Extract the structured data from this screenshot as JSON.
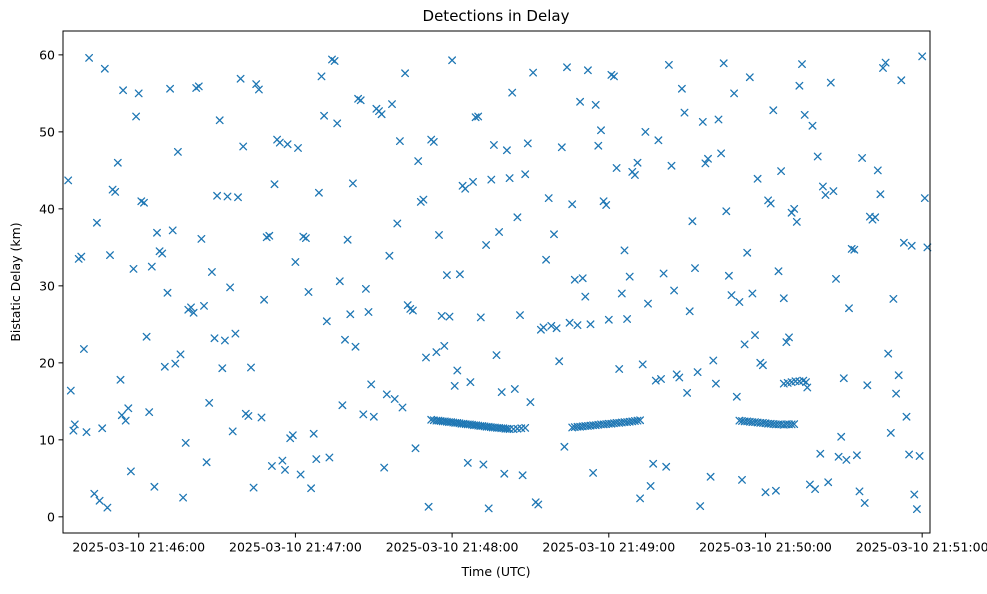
{
  "figure": {
    "title": "Detections in Delay",
    "background_color": "#ffffff",
    "axes_color": "#000000",
    "marker_color": "#1f77b4"
  },
  "chart_data": {
    "type": "scatter",
    "title": "Detections in Delay",
    "xlabel": "Time (UTC)",
    "ylabel": "Bistatic Delay (km)",
    "marker": "x",
    "marker_color": "#1f77b4",
    "grid": false,
    "legend": "none",
    "x_unit": "seconds after 2025-03-10 21:46:00 UTC",
    "x_range": [
      -29,
      303
    ],
    "y_range": [
      -2.1,
      63.1
    ],
    "y_ticks": [
      0,
      10,
      20,
      30,
      40,
      50,
      60
    ],
    "x_ticks": [
      {
        "t": 0,
        "label": "2025-03-10 21:46:00"
      },
      {
        "t": 60,
        "label": "2025-03-10 21:47:00"
      },
      {
        "t": 120,
        "label": "2025-03-10 21:48:00"
      },
      {
        "t": 180,
        "label": "2025-03-10 21:49:00"
      },
      {
        "t": 240,
        "label": "2025-03-10 21:50:00"
      },
      {
        "t": 300,
        "label": "2025-03-10 21:51:00"
      }
    ],
    "points": [
      [
        -27,
        43.7
      ],
      [
        -26,
        16.4
      ],
      [
        -25,
        11.2
      ],
      [
        -24.5,
        12.0
      ],
      [
        -23,
        33.5
      ],
      [
        -22,
        33.8
      ],
      [
        -21,
        21.8
      ],
      [
        -20,
        11.0
      ],
      [
        -19,
        59.6
      ],
      [
        -17,
        3.0
      ],
      [
        -16,
        38.2
      ],
      [
        -15,
        2.1
      ],
      [
        -14,
        11.5
      ],
      [
        -13,
        58.2
      ],
      [
        -12,
        1.2
      ],
      [
        -11,
        34.0
      ],
      [
        -10,
        42.5
      ],
      [
        -9,
        42.2
      ],
      [
        -8,
        46.0
      ],
      [
        -7,
        17.8
      ],
      [
        -6.5,
        13.2
      ],
      [
        -6,
        55.4
      ],
      [
        -5,
        12.5
      ],
      [
        -4,
        14.1
      ],
      [
        -3,
        5.9
      ],
      [
        -2,
        32.2
      ],
      [
        -1,
        52.0
      ],
      [
        0,
        55.0
      ],
      [
        1,
        41.0
      ],
      [
        2,
        40.8
      ],
      [
        3,
        23.4
      ],
      [
        4,
        13.6
      ],
      [
        5,
        32.5
      ],
      [
        6,
        3.9
      ],
      [
        7,
        36.9
      ],
      [
        8,
        34.5
      ],
      [
        9,
        34.2
      ],
      [
        10,
        19.5
      ],
      [
        11,
        29.1
      ],
      [
        12,
        55.6
      ],
      [
        13,
        37.2
      ],
      [
        14,
        19.9
      ],
      [
        15,
        47.4
      ],
      [
        16,
        21.1
      ],
      [
        17,
        2.5
      ],
      [
        18,
        9.6
      ],
      [
        19,
        26.9
      ],
      [
        20,
        27.2
      ],
      [
        21,
        26.5
      ],
      [
        22,
        55.7
      ],
      [
        23,
        55.9
      ],
      [
        24,
        36.1
      ],
      [
        25,
        27.4
      ],
      [
        26,
        7.1
      ],
      [
        27,
        14.8
      ],
      [
        28,
        31.8
      ],
      [
        29,
        23.2
      ],
      [
        30,
        41.7
      ],
      [
        31,
        51.5
      ],
      [
        32,
        19.3
      ],
      [
        33,
        22.9
      ],
      [
        34,
        41.6
      ],
      [
        35,
        29.8
      ],
      [
        36,
        11.1
      ],
      [
        37,
        23.8
      ],
      [
        38,
        41.5
      ],
      [
        39,
        56.9
      ],
      [
        40,
        48.1
      ],
      [
        41,
        13.4
      ],
      [
        42,
        13.1
      ],
      [
        43,
        19.4
      ],
      [
        44,
        3.8
      ],
      [
        45,
        56.2
      ],
      [
        46,
        55.5
      ],
      [
        47,
        12.9
      ],
      [
        48,
        28.2
      ],
      [
        49,
        36.3
      ],
      [
        50,
        36.5
      ],
      [
        51,
        6.6
      ],
      [
        52,
        43.2
      ],
      [
        53,
        49.0
      ],
      [
        54,
        48.6
      ],
      [
        55,
        7.3
      ],
      [
        56,
        6.1
      ],
      [
        57,
        48.4
      ],
      [
        58,
        10.2
      ],
      [
        59,
        10.6
      ],
      [
        60,
        33.1
      ],
      [
        61,
        47.9
      ],
      [
        62,
        5.5
      ],
      [
        63,
        36.4
      ],
      [
        64,
        36.2
      ],
      [
        65,
        29.2
      ],
      [
        66,
        3.7
      ],
      [
        67,
        10.8
      ],
      [
        68,
        7.5
      ],
      [
        69,
        42.1
      ],
      [
        70,
        57.2
      ],
      [
        71,
        52.1
      ],
      [
        72,
        25.4
      ],
      [
        73,
        7.7
      ],
      [
        74,
        59.4
      ],
      [
        75,
        59.2
      ],
      [
        76,
        51.1
      ],
      [
        77,
        30.6
      ],
      [
        78,
        14.5
      ],
      [
        79,
        23.0
      ],
      [
        80,
        36.0
      ],
      [
        81,
        26.3
      ],
      [
        82,
        43.3
      ],
      [
        83,
        22.1
      ],
      [
        84,
        54.3
      ],
      [
        85,
        54.1
      ],
      [
        86,
        13.3
      ],
      [
        87,
        29.6
      ],
      [
        88,
        26.6
      ],
      [
        89,
        17.2
      ],
      [
        90,
        13.0
      ],
      [
        91,
        53.0
      ],
      [
        92,
        52.7
      ],
      [
        93,
        52.3
      ],
      [
        94,
        6.4
      ],
      [
        95,
        15.9
      ],
      [
        96,
        33.9
      ],
      [
        97,
        53.6
      ],
      [
        98,
        15.3
      ],
      [
        99,
        38.1
      ],
      [
        100,
        48.8
      ],
      [
        101,
        14.2
      ],
      [
        102,
        57.6
      ],
      [
        103,
        27.5
      ],
      [
        104,
        27.0
      ],
      [
        105,
        26.8
      ],
      [
        106,
        8.9
      ],
      [
        107,
        46.2
      ],
      [
        108,
        40.9
      ],
      [
        109,
        41.2
      ],
      [
        110,
        20.7
      ],
      [
        111,
        1.3
      ],
      [
        112,
        49.0
      ],
      [
        113,
        48.7
      ],
      [
        114,
        21.4
      ],
      [
        115,
        36.6
      ],
      [
        116,
        26.1
      ],
      [
        117,
        22.2
      ],
      [
        118,
        31.4
      ],
      [
        119,
        26.0
      ],
      [
        120,
        59.3
      ],
      [
        121,
        17.0
      ],
      [
        122,
        19.0
      ],
      [
        123,
        31.5
      ],
      [
        124,
        43.0
      ],
      [
        125,
        42.6
      ],
      [
        126,
        7.0
      ],
      [
        127,
        17.5
      ],
      [
        128,
        43.5
      ],
      [
        129,
        51.9
      ],
      [
        130,
        52.0
      ],
      [
        131,
        25.9
      ],
      [
        132,
        6.8
      ],
      [
        133,
        35.3
      ],
      [
        134,
        1.1
      ],
      [
        135,
        43.8
      ],
      [
        136,
        48.3
      ],
      [
        137,
        21.0
      ],
      [
        138,
        37.0
      ],
      [
        139,
        16.2
      ],
      [
        140,
        5.6
      ],
      [
        141,
        47.6
      ],
      [
        142,
        44.0
      ],
      [
        143,
        55.1
      ],
      [
        144,
        16.6
      ],
      [
        145,
        38.9
      ],
      [
        146,
        26.2
      ],
      [
        147,
        5.4
      ],
      [
        148,
        44.5
      ],
      [
        149,
        48.5
      ],
      [
        150,
        14.9
      ],
      [
        151,
        57.7
      ],
      [
        152,
        1.9
      ],
      [
        153,
        1.6
      ],
      [
        154,
        24.3
      ],
      [
        155,
        24.6
      ],
      [
        156,
        33.4
      ],
      [
        157,
        41.4
      ],
      [
        158,
        24.8
      ],
      [
        159,
        36.7
      ],
      [
        160,
        24.5
      ],
      [
        161,
        20.2
      ],
      [
        162,
        48.0
      ],
      [
        163,
        9.1
      ],
      [
        164,
        58.4
      ],
      [
        165,
        25.2
      ],
      [
        166,
        40.6
      ],
      [
        167,
        30.8
      ],
      [
        168,
        24.9
      ],
      [
        169,
        53.9
      ],
      [
        170,
        31.0
      ],
      [
        171,
        28.6
      ],
      [
        172,
        58.0
      ],
      [
        173,
        25.0
      ],
      [
        174,
        5.7
      ],
      [
        175,
        53.5
      ],
      [
        176,
        48.2
      ],
      [
        177,
        50.2
      ],
      [
        178,
        41.0
      ],
      [
        179,
        40.5
      ],
      [
        180,
        25.6
      ],
      [
        181,
        57.4
      ],
      [
        182,
        57.2
      ],
      [
        183,
        45.3
      ],
      [
        184,
        19.2
      ],
      [
        185,
        29.0
      ],
      [
        186,
        34.6
      ],
      [
        187,
        25.7
      ],
      [
        188,
        31.2
      ],
      [
        189,
        44.8
      ],
      [
        190,
        44.4
      ],
      [
        191,
        46.0
      ],
      [
        192,
        2.4
      ],
      [
        193,
        19.8
      ],
      [
        194,
        50.0
      ],
      [
        195,
        27.7
      ],
      [
        196,
        4.0
      ],
      [
        197,
        6.9
      ],
      [
        198,
        17.7
      ],
      [
        199,
        48.9
      ],
      [
        200,
        17.9
      ],
      [
        201,
        31.6
      ],
      [
        202,
        6.5
      ],
      [
        203,
        58.7
      ],
      [
        204,
        45.6
      ],
      [
        205,
        29.4
      ],
      [
        206,
        18.5
      ],
      [
        207,
        18.1
      ],
      [
        208,
        55.6
      ],
      [
        209,
        52.5
      ],
      [
        210,
        16.1
      ],
      [
        211,
        26.7
      ],
      [
        212,
        38.4
      ],
      [
        213,
        32.3
      ],
      [
        214,
        18.8
      ],
      [
        215,
        1.4
      ],
      [
        216,
        51.3
      ],
      [
        217,
        45.9
      ],
      [
        218,
        46.5
      ],
      [
        219,
        5.2
      ],
      [
        220,
        20.3
      ],
      [
        221,
        17.3
      ],
      [
        222,
        51.6
      ],
      [
        223,
        47.2
      ],
      [
        224,
        58.9
      ],
      [
        225,
        39.7
      ],
      [
        226,
        31.3
      ],
      [
        227,
        28.8
      ],
      [
        228,
        55.0
      ],
      [
        229,
        15.6
      ],
      [
        230,
        27.9
      ],
      [
        231,
        4.8
      ],
      [
        232,
        22.4
      ],
      [
        233,
        34.3
      ],
      [
        234,
        57.1
      ],
      [
        235,
        29.0
      ],
      [
        236,
        23.6
      ],
      [
        237,
        43.9
      ],
      [
        238,
        20.0
      ],
      [
        239,
        19.7
      ],
      [
        240,
        3.2
      ],
      [
        241,
        41.1
      ],
      [
        242,
        40.7
      ],
      [
        243,
        52.8
      ],
      [
        244,
        3.4
      ],
      [
        245,
        31.9
      ],
      [
        246,
        44.9
      ],
      [
        247,
        28.4
      ],
      [
        248,
        22.7
      ],
      [
        249,
        23.3
      ],
      [
        250,
        39.5
      ],
      [
        251,
        40.0
      ],
      [
        252,
        38.3
      ],
      [
        253,
        56.0
      ],
      [
        254,
        58.8
      ],
      [
        255,
        52.2
      ],
      [
        256,
        16.8
      ],
      [
        257,
        4.2
      ],
      [
        258,
        50.8
      ],
      [
        259,
        3.6
      ],
      [
        260,
        46.8
      ],
      [
        261,
        8.2
      ],
      [
        262,
        42.9
      ],
      [
        263,
        41.8
      ],
      [
        264,
        4.5
      ],
      [
        265,
        56.4
      ],
      [
        266,
        42.3
      ],
      [
        267,
        30.9
      ],
      [
        268,
        7.8
      ],
      [
        269,
        10.4
      ],
      [
        270,
        18.0
      ],
      [
        271,
        7.4
      ],
      [
        272,
        27.1
      ],
      [
        273,
        34.8
      ],
      [
        274,
        34.7
      ],
      [
        275,
        8.0
      ],
      [
        276,
        3.3
      ],
      [
        277,
        46.6
      ],
      [
        278,
        1.8
      ],
      [
        279,
        17.1
      ],
      [
        280,
        39.0
      ],
      [
        281,
        38.6
      ],
      [
        282,
        38.9
      ],
      [
        283,
        45.0
      ],
      [
        284,
        41.9
      ],
      [
        285,
        58.3
      ],
      [
        286,
        59.0
      ],
      [
        287,
        21.2
      ],
      [
        288,
        10.9
      ],
      [
        289,
        28.3
      ],
      [
        290,
        16.0
      ],
      [
        291,
        18.4
      ],
      [
        292,
        56.7
      ],
      [
        293,
        35.6
      ],
      [
        294,
        13.0
      ],
      [
        295,
        8.1
      ],
      [
        296,
        35.2
      ],
      [
        297,
        2.9
      ],
      [
        298,
        1.0
      ],
      [
        299,
        7.9
      ],
      [
        300,
        59.8
      ],
      [
        301,
        41.4
      ],
      [
        302,
        35.0
      ],
      [
        112,
        12.6
      ],
      [
        113,
        12.55
      ],
      [
        114,
        12.5
      ],
      [
        114.8,
        12.5
      ],
      [
        115.6,
        12.45
      ],
      [
        116.4,
        12.4
      ],
      [
        117.2,
        12.4
      ],
      [
        118,
        12.35
      ],
      [
        118.8,
        12.3
      ],
      [
        119.6,
        12.3
      ],
      [
        120.4,
        12.25
      ],
      [
        121.2,
        12.2
      ],
      [
        122,
        12.2
      ],
      [
        122.8,
        12.15
      ],
      [
        123.6,
        12.1
      ],
      [
        124.4,
        12.1
      ],
      [
        125.2,
        12.05
      ],
      [
        126,
        12.0
      ],
      [
        126.8,
        12.0
      ],
      [
        127.6,
        11.95
      ],
      [
        128.4,
        11.9
      ],
      [
        129.2,
        11.9
      ],
      [
        130,
        11.85
      ],
      [
        130.8,
        11.8
      ],
      [
        131.6,
        11.8
      ],
      [
        132.4,
        11.75
      ],
      [
        133.2,
        11.7
      ],
      [
        134,
        11.7
      ],
      [
        134.8,
        11.65
      ],
      [
        135.6,
        11.6
      ],
      [
        136.4,
        11.6
      ],
      [
        137.2,
        11.55
      ],
      [
        138,
        11.55
      ],
      [
        138.8,
        11.5
      ],
      [
        139.6,
        11.5
      ],
      [
        140.4,
        11.45
      ],
      [
        141.2,
        11.45
      ],
      [
        142,
        11.4
      ],
      [
        143.5,
        11.4
      ],
      [
        145,
        11.45
      ],
      [
        146.5,
        11.5
      ],
      [
        148,
        11.55
      ],
      [
        166,
        11.6
      ],
      [
        167,
        11.65
      ],
      [
        168,
        11.7
      ],
      [
        169,
        11.7
      ],
      [
        170,
        11.75
      ],
      [
        171,
        11.8
      ],
      [
        172,
        11.8
      ],
      [
        173,
        11.85
      ],
      [
        174,
        11.9
      ],
      [
        175,
        11.9
      ],
      [
        176,
        11.95
      ],
      [
        177,
        12.0
      ],
      [
        178,
        12.0
      ],
      [
        179,
        12.05
      ],
      [
        180,
        12.1
      ],
      [
        181,
        12.1
      ],
      [
        182,
        12.15
      ],
      [
        183,
        12.2
      ],
      [
        184,
        12.2
      ],
      [
        185,
        12.25
      ],
      [
        186,
        12.3
      ],
      [
        187,
        12.3
      ],
      [
        188,
        12.35
      ],
      [
        189,
        12.4
      ],
      [
        190,
        12.45
      ],
      [
        191,
        12.5
      ],
      [
        192,
        12.55
      ],
      [
        230,
        12.5
      ],
      [
        231,
        12.45
      ],
      [
        232,
        12.4
      ],
      [
        233,
        12.4
      ],
      [
        234,
        12.35
      ],
      [
        235,
        12.3
      ],
      [
        236,
        12.3
      ],
      [
        237,
        12.25
      ],
      [
        238,
        12.2
      ],
      [
        239,
        12.2
      ],
      [
        240,
        12.15
      ],
      [
        241,
        12.1
      ],
      [
        242,
        12.1
      ],
      [
        243,
        12.05
      ],
      [
        244,
        12.0
      ],
      [
        245,
        12.0
      ],
      [
        246,
        12.0
      ],
      [
        247,
        11.95
      ],
      [
        248,
        12.0
      ],
      [
        249,
        12.0
      ],
      [
        250,
        12.0
      ],
      [
        251,
        12.05
      ],
      [
        247,
        17.3
      ],
      [
        248.5,
        17.4
      ],
      [
        250,
        17.5
      ],
      [
        251.5,
        17.6
      ],
      [
        253,
        17.6
      ],
      [
        254.5,
        17.7
      ],
      [
        255.5,
        17.5
      ]
    ]
  }
}
